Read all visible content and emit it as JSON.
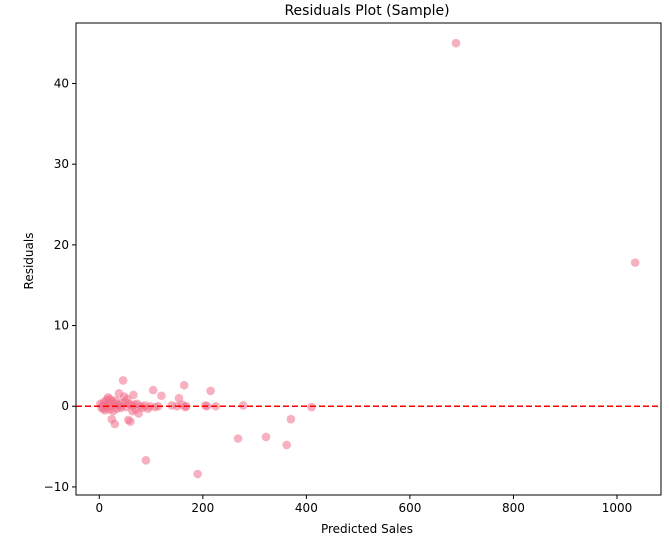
{
  "chart_data": {
    "type": "scatter",
    "title": "Residuals Plot (Sample)",
    "xlabel": "Predicted Sales",
    "ylabel": "Residuals",
    "xlim": [
      -45,
      1085
    ],
    "ylim": [
      -11,
      47.5
    ],
    "x_ticks": [
      0,
      200,
      400,
      600,
      800,
      1000
    ],
    "y_ticks": [
      -10,
      0,
      10,
      20,
      30,
      40
    ],
    "grid": false,
    "legend": "none",
    "point_color": "#f0708a",
    "point_opacity": 0.55,
    "reference_line": {
      "y": 0,
      "color": "#ff0000",
      "style": "dashed"
    },
    "points": [
      {
        "x": 689,
        "y": 45.0
      },
      {
        "x": 1035,
        "y": 17.8
      },
      {
        "x": 2,
        "y": 0.3
      },
      {
        "x": 4,
        "y": -0.2
      },
      {
        "x": 6,
        "y": 0.1
      },
      {
        "x": 8,
        "y": -0.3
      },
      {
        "x": 9,
        "y": 0.5
      },
      {
        "x": 11,
        "y": -0.5
      },
      {
        "x": 12,
        "y": 0.2
      },
      {
        "x": 14,
        "y": 0.8
      },
      {
        "x": 15,
        "y": -0.1
      },
      {
        "x": 17,
        "y": 1.1
      },
      {
        "x": 18,
        "y": 0.4
      },
      {
        "x": 20,
        "y": -0.4
      },
      {
        "x": 21,
        "y": 0.9
      },
      {
        "x": 23,
        "y": 0.0
      },
      {
        "x": 24,
        "y": -1.6
      },
      {
        "x": 26,
        "y": 0.6
      },
      {
        "x": 27,
        "y": -0.6
      },
      {
        "x": 29,
        "y": 0.3
      },
      {
        "x": 30,
        "y": -2.2
      },
      {
        "x": 32,
        "y": 0.7
      },
      {
        "x": 34,
        "y": -0.3
      },
      {
        "x": 36,
        "y": 0.2
      },
      {
        "x": 38,
        "y": 1.6
      },
      {
        "x": 40,
        "y": 0.0
      },
      {
        "x": 42,
        "y": -0.2
      },
      {
        "x": 44,
        "y": 0.4
      },
      {
        "x": 46,
        "y": 3.2
      },
      {
        "x": 48,
        "y": 1.2
      },
      {
        "x": 50,
        "y": 0.5
      },
      {
        "x": 52,
        "y": -0.1
      },
      {
        "x": 54,
        "y": 0.9
      },
      {
        "x": 56,
        "y": -1.7
      },
      {
        "x": 58,
        "y": 0.3
      },
      {
        "x": 60,
        "y": -1.9
      },
      {
        "x": 62,
        "y": 0.1
      },
      {
        "x": 64,
        "y": -0.6
      },
      {
        "x": 66,
        "y": 1.4
      },
      {
        "x": 68,
        "y": 0.2
      },
      {
        "x": 70,
        "y": -0.4
      },
      {
        "x": 73,
        "y": 0.3
      },
      {
        "x": 76,
        "y": -0.9
      },
      {
        "x": 80,
        "y": 0.0
      },
      {
        "x": 84,
        "y": -0.2
      },
      {
        "x": 88,
        "y": 0.1
      },
      {
        "x": 90,
        "y": -6.7
      },
      {
        "x": 94,
        "y": -0.3
      },
      {
        "x": 98,
        "y": 0.0
      },
      {
        "x": 104,
        "y": 2.0
      },
      {
        "x": 108,
        "y": -0.1
      },
      {
        "x": 114,
        "y": 0.0
      },
      {
        "x": 120,
        "y": 1.3
      },
      {
        "x": 140,
        "y": 0.1
      },
      {
        "x": 150,
        "y": 0.0
      },
      {
        "x": 154,
        "y": 1.0
      },
      {
        "x": 160,
        "y": 0.2
      },
      {
        "x": 164,
        "y": 2.6
      },
      {
        "x": 166,
        "y": -0.1
      },
      {
        "x": 168,
        "y": 0.0
      },
      {
        "x": 190,
        "y": -8.4
      },
      {
        "x": 205,
        "y": 0.1
      },
      {
        "x": 208,
        "y": 0.0
      },
      {
        "x": 215,
        "y": 1.9
      },
      {
        "x": 225,
        "y": 0.0
      },
      {
        "x": 268,
        "y": -4.0
      },
      {
        "x": 278,
        "y": 0.1
      },
      {
        "x": 322,
        "y": -3.8
      },
      {
        "x": 362,
        "y": -4.8
      },
      {
        "x": 370,
        "y": -1.6
      },
      {
        "x": 410,
        "y": -0.1
      }
    ]
  }
}
